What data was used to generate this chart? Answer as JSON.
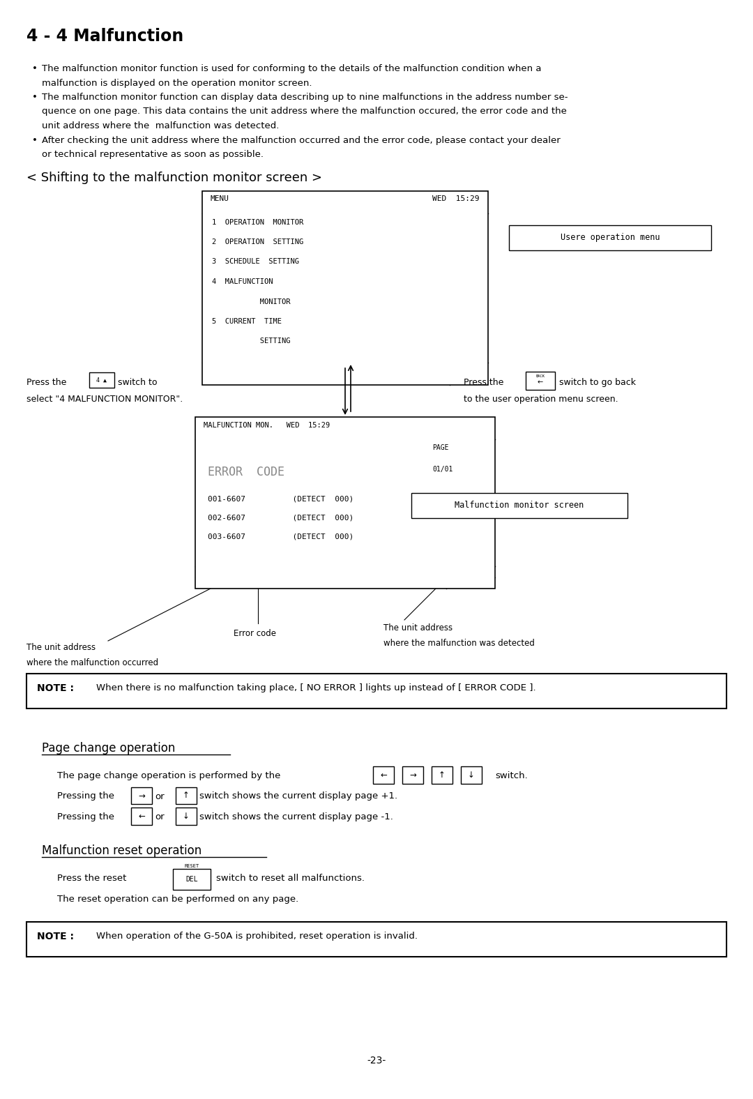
{
  "title": "4 - 4 Malfunction",
  "bg_color": "#ffffff",
  "bullet_points": [
    [
      "• ",
      "The malfunction monitor function is used for conforming to the details of the malfunction condition when a"
    ],
    [
      "  ",
      "malfunction is displayed on the operation monitor screen."
    ],
    [
      "• ",
      "The malfunction monitor function can display data describing up to nine malfunctions in the address number se-"
    ],
    [
      "  ",
      "quence on one page. This data contains the unit address where the malfunction occured, the error code and the"
    ],
    [
      "  ",
      "unit address where the  malfunction was detected."
    ],
    [
      "• ",
      "After checking the unit address where the malfunction occurred and the error code, please contact your dealer"
    ],
    [
      "  ",
      "or technical representative as soon as possible."
    ]
  ],
  "section1_title": "< Shifting to the malfunction monitor screen >",
  "menu_lines": [
    "1  OPERATION  MONITOR",
    "2  OPERATION  SETTING",
    "3  SCHEDULE  SETTING",
    "4  MALFUNCTION",
    "           MONITOR",
    "5  CURRENT  TIME",
    "           SETTING"
  ],
  "malfunction_entries": [
    "001-6607          (DETECT  000)",
    "002-6607          (DETECT  000)",
    "003-6607          (DETECT  000)"
  ],
  "label_user_menu": "Usere operation menu",
  "label_malfunction_screen": "Malfunction monitor screen",
  "section2_title": "Page change operation",
  "section3_title": "Malfunction reset operation",
  "note1_text": "When there is no malfunction taking place, [ NO ERROR ] lights up instead of [ ERROR CODE ].",
  "note2_text": "When operation of the G-50A is prohibited, reset operation is invalid.",
  "page_number": "-23-"
}
